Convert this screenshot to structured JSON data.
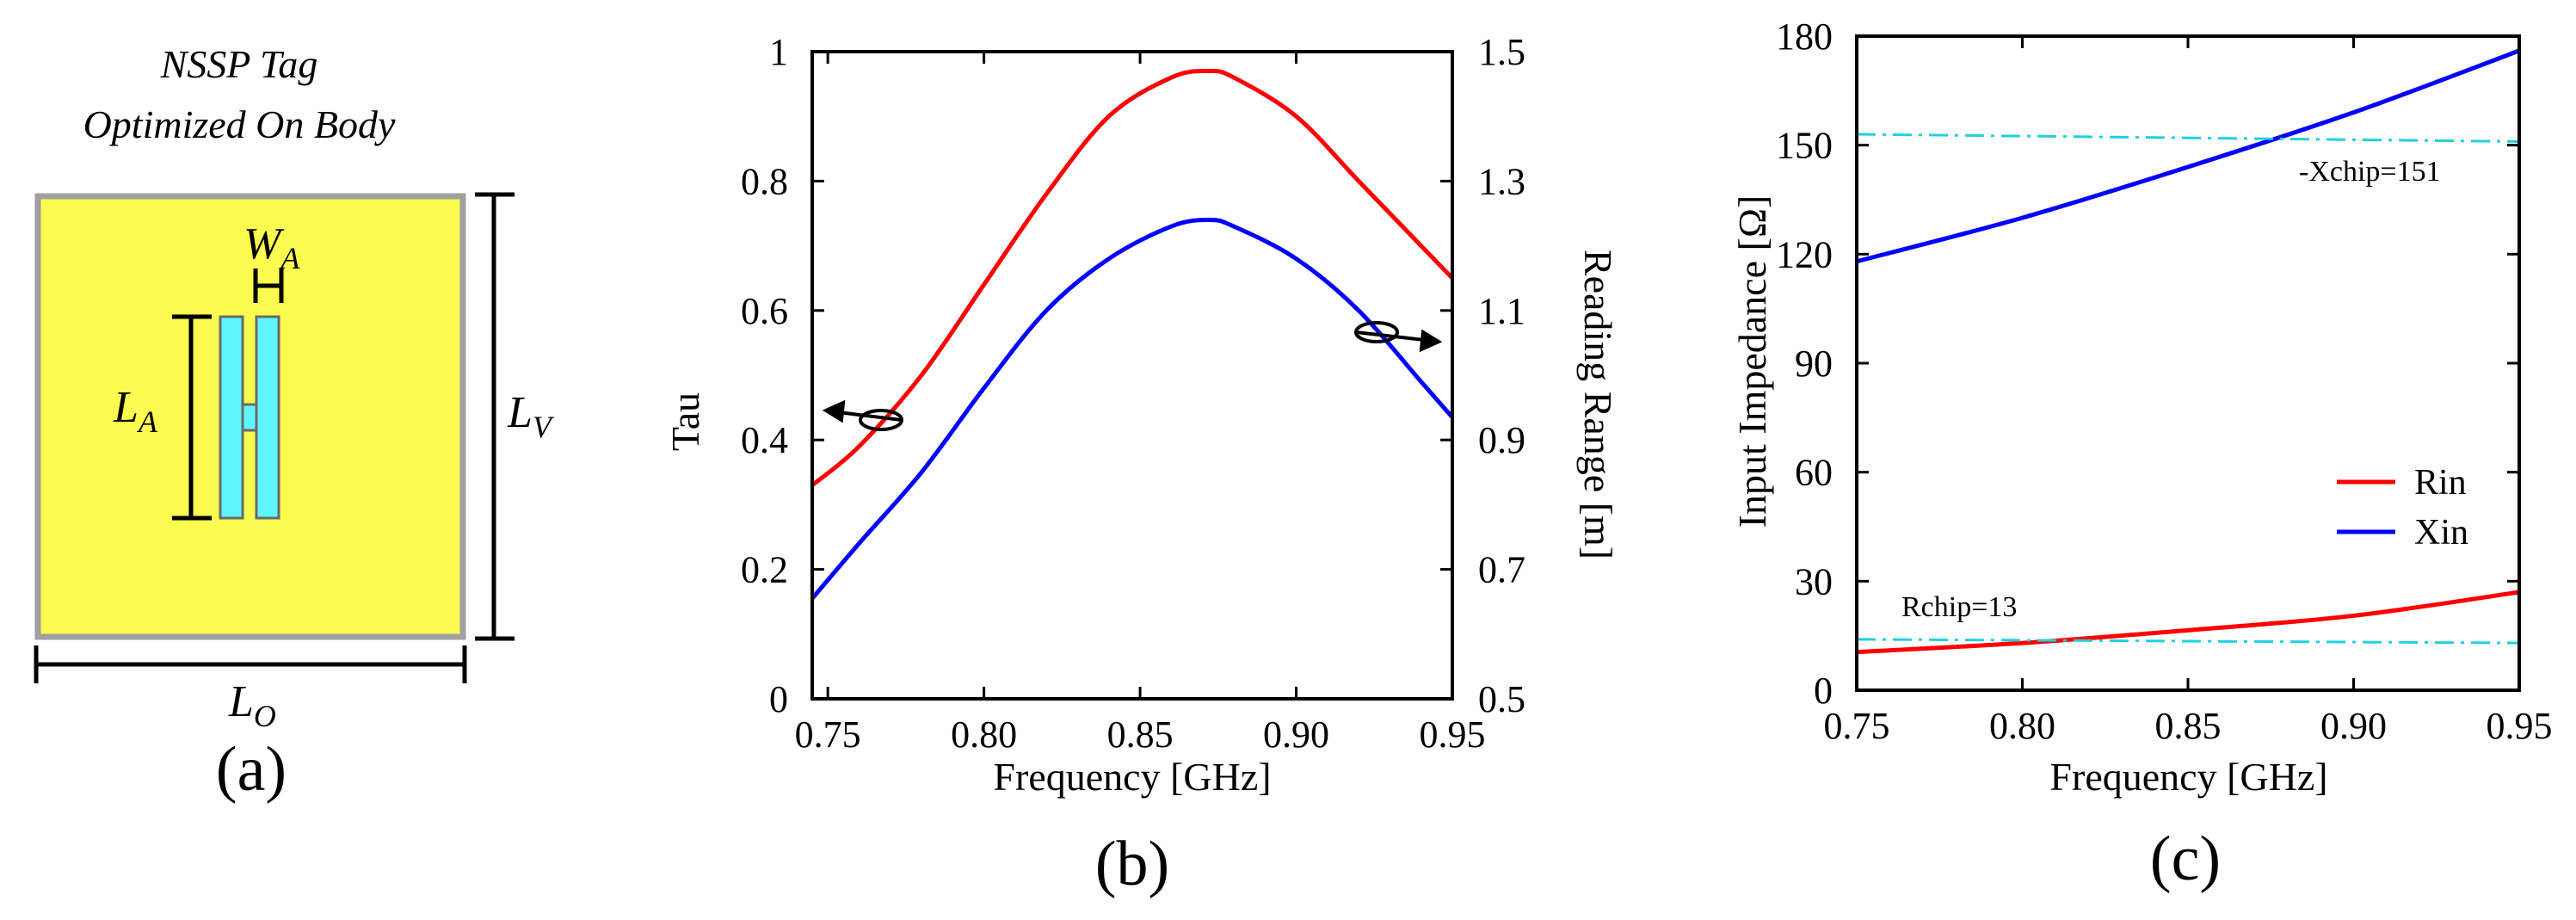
{
  "panel_a": {
    "title_line1": "NSSP Tag",
    "title_line2": "Optimized On  Body",
    "label_WA": "W",
    "label_WA_sub": "A",
    "label_LA": "L",
    "label_LA_sub": "A",
    "label_LV": "L",
    "label_LV_sub": "V",
    "label_LO": "L",
    "label_LO_sub": "O",
    "panel_label": "(a)",
    "colors": {
      "tag": "#fbfb50",
      "antenna": "#5ff5ff",
      "border": "#a0a0a0"
    }
  },
  "chart_data": [
    {
      "type": "line",
      "panel_label": "(b)",
      "xlabel": "Frequency [GHz]",
      "ylabel": "Tau",
      "y2label": "Reading Range [m]",
      "xlim": [
        0.745,
        0.95
      ],
      "ylim": [
        0,
        1
      ],
      "y2lim": [
        0.5,
        1.5
      ],
      "x_ticks": [
        "0.75",
        "0.80",
        "0.85",
        "0.90",
        "0.95"
      ],
      "x_tick_values": [
        0.75,
        0.8,
        0.85,
        0.9,
        0.95
      ],
      "y_ticks": [
        "0",
        "0.2",
        "0.4",
        "0.6",
        "0.8",
        "1"
      ],
      "y_tick_values": [
        0,
        0.2,
        0.4,
        0.6,
        0.8,
        1.0
      ],
      "y2_ticks": [
        "0.5",
        "0.7",
        "0.9",
        "1.1",
        "1.3",
        "1.5"
      ],
      "y2_tick_values": [
        0.5,
        0.7,
        0.9,
        1.1,
        1.3,
        1.5
      ],
      "series": [
        {
          "name": "Tau",
          "axis": "left",
          "color": "#ff0000",
          "x": [
            0.745,
            0.76,
            0.78,
            0.8,
            0.82,
            0.84,
            0.86,
            0.872,
            0.88,
            0.9,
            0.92,
            0.94,
            0.95
          ],
          "y": [
            0.33,
            0.39,
            0.5,
            0.64,
            0.78,
            0.9,
            0.96,
            0.97,
            0.96,
            0.9,
            0.8,
            0.7,
            0.65
          ]
        },
        {
          "name": "Reading Range",
          "axis": "right",
          "color": "#0000ff",
          "x": [
            0.745,
            0.76,
            0.78,
            0.8,
            0.82,
            0.84,
            0.86,
            0.872,
            0.88,
            0.9,
            0.92,
            0.94,
            0.95
          ],
          "y": [
            0.655,
            0.74,
            0.85,
            0.98,
            1.1,
            1.18,
            1.23,
            1.24,
            1.23,
            1.18,
            1.1,
            0.99,
            0.935
          ]
        }
      ]
    },
    {
      "type": "line",
      "panel_label": "(c)",
      "xlabel": "Frequency [GHz]",
      "ylabel": "Input Impedance [Ω]",
      "xlim": [
        0.75,
        0.95
      ],
      "ylim": [
        0,
        180
      ],
      "x_ticks": [
        "0.75",
        "0.80",
        "0.85",
        "0.90",
        "0.95"
      ],
      "x_tick_values": [
        0.75,
        0.8,
        0.85,
        0.9,
        0.95
      ],
      "y_ticks": [
        "0",
        "30",
        "60",
        "90",
        "120",
        "150",
        "180"
      ],
      "y_tick_values": [
        0,
        30,
        60,
        90,
        120,
        150,
        180
      ],
      "legend": [
        "Rin",
        "Xin"
      ],
      "legend_position": "lower-right",
      "annotations": [
        "-Xchip=151",
        "Rchip=13"
      ],
      "series": [
        {
          "name": "Rin",
          "color": "#ff0000",
          "x": [
            0.75,
            0.8,
            0.85,
            0.9,
            0.95
          ],
          "y": [
            10.5,
            13,
            16.5,
            20.5,
            27
          ]
        },
        {
          "name": "Xin",
          "color": "#0000ff",
          "x": [
            0.75,
            0.8,
            0.85,
            0.9,
            0.95
          ],
          "y": [
            118,
            130,
            144,
            159,
            176
          ]
        },
        {
          "name": "-Xchip",
          "color": "#20d0e0",
          "dashed": true,
          "x": [
            0.75,
            0.95
          ],
          "y": [
            153,
            151
          ]
        },
        {
          "name": "Rchip",
          "color": "#20d0e0",
          "dashed": true,
          "x": [
            0.75,
            0.95
          ],
          "y": [
            14,
            13
          ]
        }
      ]
    }
  ]
}
